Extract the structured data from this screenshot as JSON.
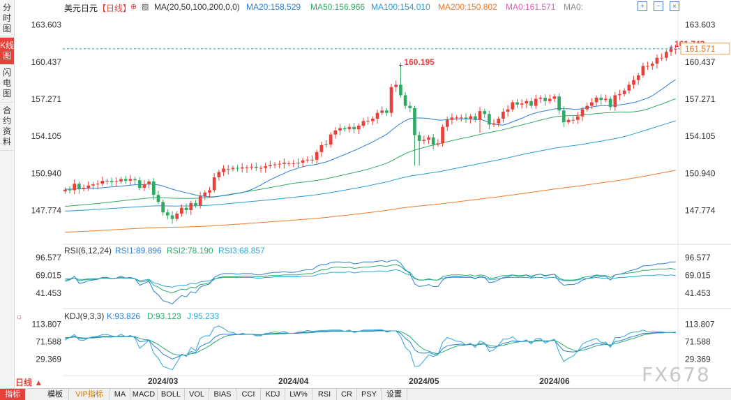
{
  "sidebar": {
    "tabs": [
      "分时图",
      "K线图",
      "闪电图",
      "合约资料"
    ],
    "active": 1
  },
  "header": {
    "symbol": "美元日元",
    "period_badge": "【日线】",
    "ma_label": "MA(20,50,100,200,0,0)",
    "ma20": "MA20:158.529",
    "ma50": "MA50:156.966",
    "ma100": "MA100:154.010",
    "ma200": "MA200:150.802",
    "ma0a": "MA0:161.571",
    "ma0b": "MA0:"
  },
  "rsi_header": {
    "label": "RSI(6,12,24)",
    "rsi1": "RSI1:89.896",
    "rsi2": "RSI2:78.190",
    "rsi3": "RSI3:68.857"
  },
  "kdj_header": {
    "label": "KDJ(9,3,3)",
    "k": "K:93.826",
    "d": "D:93.123",
    "j": "J:95.233"
  },
  "bottom": {
    "period": "日线 ▲",
    "tabs": [
      "指标",
      "模板",
      "VIP指标",
      "MA",
      "MACD",
      "BOLL",
      "VOL",
      "BIAS",
      "CCI",
      "KDJ",
      "LW%",
      "RSI",
      "CR",
      "PSY",
      "设置"
    ]
  },
  "watermark": "FX678",
  "colors": {
    "up": "#e8403a",
    "down": "#2eaa64",
    "ma20": "#2a7fd8",
    "ma50": "#2eaa64",
    "ma100": "#2a9ad8",
    "ma200": "#f07a28",
    "rsi1": "#2a7fd8",
    "rsi2": "#27ad6a",
    "rsi3": "#2aa8d8"
  },
  "chart_data": {
    "type": "candlestick",
    "title": "美元日元 日线",
    "y_ticks": [
      "163.603",
      "160.437",
      "157.271",
      "154.105",
      "150.940",
      "147.774"
    ],
    "y_tick_values": [
      163.603,
      160.437,
      157.271,
      154.105,
      150.94,
      147.774
    ],
    "ylim": [
      145.0,
      164.3
    ],
    "x_ticks": [
      "2024/03",
      "2024/04",
      "2024/05",
      "2024/06"
    ],
    "x_tick_index": [
      21,
      49,
      77,
      105
    ],
    "last_price": "161.571",
    "last_price_value": 161.571,
    "max_label": "161.742",
    "max_value": 161.742,
    "max_index": 130,
    "high_label": "160.195",
    "high_value": 160.195,
    "high_index": 72,
    "closes": [
      149.55,
      149.5,
      150.05,
      149.6,
      149.7,
      149.9,
      150.0,
      150.05,
      150.3,
      150.3,
      150.2,
      150.25,
      150.45,
      150.3,
      150.45,
      150.35,
      149.7,
      150.0,
      150.25,
      149.1,
      148.5,
      147.6,
      147.35,
      147.05,
      147.5,
      148.0,
      147.8,
      148.4,
      148.2,
      149.0,
      149.3,
      149.5,
      150.6,
      151.05,
      151.35,
      151.3,
      151.4,
      151.35,
      151.45,
      151.45,
      151.5,
      151.4,
      151.4,
      151.55,
      151.65,
      151.7,
      151.75,
      151.85,
      151.8,
      151.8,
      151.85,
      152.05,
      152.1,
      152.1,
      152.75,
      153.35,
      153.4,
      154.25,
      154.6,
      154.8,
      154.7,
      154.9,
      154.7,
      155.0,
      155.4,
      155.4,
      155.6,
      156.1,
      156.3,
      156.1,
      158.3,
      158.5,
      157.6,
      156.7,
      156.5,
      154.2,
      153.7,
      153.8,
      154.0,
      153.4,
      153.5,
      154.9,
      155.5,
      155.7,
      155.7,
      155.7,
      155.6,
      155.8,
      155.5,
      156.25,
      156.0,
      155.1,
      155.2,
      155.6,
      156.2,
      156.4,
      157.0,
      156.8,
      156.9,
      157.1,
      156.7,
      157.3,
      157.4,
      157.1,
      157.3,
      157.5,
      156.3,
      155.3,
      155.5,
      155.5,
      155.8,
      156.4,
      156.7,
      157.0,
      157.4,
      157.2,
      157.3,
      156.6,
      157.6,
      157.7,
      158.0,
      158.5,
      158.9,
      159.3,
      160.1,
      160.1,
      160.3,
      160.8,
      160.8,
      161.3,
      161.6,
      161.57
    ],
    "rsi_ticks": [
      "96.577",
      "69.015",
      "41.453"
    ],
    "rsi_tick_values": [
      96.577,
      69.015,
      41.453
    ],
    "rsi1": [
      60,
      62,
      68,
      57,
      58,
      61,
      62,
      63,
      66,
      66,
      64,
      65,
      68,
      65,
      66,
      64,
      54,
      57,
      60,
      45,
      39,
      30,
      28,
      25,
      32,
      38,
      36,
      44,
      42,
      51,
      54,
      56,
      66,
      70,
      72,
      72,
      72,
      71,
      72,
      72,
      72,
      70,
      70,
      72,
      73,
      74,
      74,
      75,
      74,
      74,
      75,
      77,
      78,
      78,
      83,
      86,
      86,
      89,
      90,
      90,
      89,
      90,
      87,
      88,
      90,
      90,
      90,
      91,
      92,
      90,
      92,
      93,
      88,
      78,
      72,
      56,
      52,
      53,
      55,
      52,
      52,
      62,
      66,
      67,
      67,
      67,
      66,
      67,
      64,
      68,
      66,
      58,
      59,
      62,
      66,
      67,
      70,
      68,
      68,
      70,
      66,
      70,
      71,
      68,
      70,
      71,
      60,
      54,
      55,
      55,
      57,
      62,
      64,
      66,
      69,
      67,
      68,
      62,
      70,
      71,
      73,
      76,
      78,
      80,
      84,
      84,
      85,
      87,
      87,
      88,
      90,
      89.9
    ],
    "rsi2": [
      62,
      63,
      65,
      61,
      62,
      63,
      63,
      64,
      65,
      65,
      64,
      65,
      66,
      65,
      65,
      64,
      59,
      60,
      62,
      54,
      51,
      46,
      44,
      42,
      45,
      48,
      47,
      51,
      50,
      55,
      56,
      58,
      63,
      66,
      67,
      67,
      67,
      67,
      68,
      68,
      68,
      67,
      67,
      68,
      69,
      69,
      69,
      70,
      70,
      70,
      70,
      71,
      72,
      72,
      75,
      78,
      78,
      81,
      82,
      82,
      81,
      82,
      80,
      81,
      82,
      82,
      83,
      84,
      84,
      83,
      85,
      86,
      83,
      77,
      74,
      65,
      62,
      62,
      64,
      62,
      62,
      67,
      69,
      70,
      70,
      70,
      69,
      70,
      68,
      70,
      69,
      65,
      65,
      67,
      69,
      69,
      70,
      69,
      69,
      70,
      68,
      70,
      71,
      69,
      70,
      71,
      65,
      62,
      62,
      62,
      63,
      66,
      67,
      68,
      70,
      69,
      69,
      66,
      70,
      71,
      72,
      73,
      74,
      75,
      77,
      77,
      78,
      79,
      79,
      79,
      80,
      78.19
    ],
    "rsi3": [
      64,
      64,
      65,
      63,
      63,
      64,
      64,
      64,
      65,
      65,
      64,
      65,
      65,
      65,
      65,
      64,
      61,
      62,
      63,
      58,
      56,
      53,
      52,
      51,
      53,
      54,
      54,
      57,
      56,
      59,
      60,
      61,
      64,
      65,
      66,
      66,
      66,
      66,
      66,
      66,
      66,
      65,
      65,
      66,
      66,
      67,
      67,
      67,
      67,
      67,
      67,
      68,
      68,
      68,
      70,
      72,
      72,
      74,
      74,
      74,
      74,
      75,
      73,
      74,
      75,
      75,
      75,
      76,
      76,
      75,
      77,
      78,
      76,
      72,
      70,
      64,
      62,
      62,
      63,
      62,
      62,
      65,
      66,
      66,
      66,
      66,
      66,
      66,
      65,
      66,
      66,
      63,
      63,
      64,
      65,
      66,
      66,
      66,
      66,
      66,
      65,
      66,
      66,
      65,
      66,
      66,
      63,
      61,
      61,
      61,
      62,
      64,
      64,
      65,
      66,
      65,
      65,
      63,
      65,
      66,
      66,
      67,
      67,
      68,
      69,
      69,
      69,
      70,
      70,
      69,
      70,
      68.857
    ],
    "kdj_ticks": [
      "113.807",
      "71.588",
      "29.369"
    ],
    "kdj_tick_values": [
      113.807,
      71.588,
      29.369
    ],
    "kdj_k": [
      80,
      82,
      85,
      80,
      79,
      81,
      82,
      83,
      85,
      85,
      84,
      84,
      86,
      84,
      85,
      83,
      72,
      73,
      76,
      62,
      54,
      42,
      36,
      30,
      34,
      40,
      38,
      48,
      46,
      60,
      66,
      70,
      82,
      88,
      90,
      90,
      90,
      89,
      90,
      90,
      90,
      88,
      88,
      90,
      91,
      92,
      92,
      93,
      92,
      92,
      93,
      94,
      95,
      95,
      96,
      97,
      97,
      98,
      98,
      98,
      97,
      98,
      96,
      97,
      98,
      98,
      98,
      99,
      99,
      97,
      98,
      98,
      92,
      80,
      72,
      52,
      45,
      44,
      46,
      42,
      42,
      55,
      62,
      64,
      65,
      66,
      64,
      66,
      62,
      68,
      67,
      58,
      58,
      62,
      68,
      70,
      74,
      72,
      72,
      74,
      70,
      75,
      76,
      72,
      74,
      76,
      62,
      50,
      48,
      47,
      49,
      56,
      60,
      64,
      68,
      66,
      67,
      62,
      72,
      74,
      77,
      82,
      85,
      88,
      92,
      92,
      93,
      94,
      94,
      94,
      94,
      93.826
    ],
    "kdj_d": [
      82,
      82,
      83,
      82,
      81,
      81,
      81,
      82,
      83,
      83,
      83,
      84,
      84,
      84,
      84,
      84,
      80,
      77,
      76,
      71,
      65,
      57,
      50,
      43,
      40,
      39,
      39,
      43,
      44,
      50,
      56,
      62,
      70,
      77,
      83,
      87,
      88,
      89,
      89,
      90,
      90,
      89,
      89,
      89,
      90,
      90,
      91,
      91,
      92,
      92,
      92,
      93,
      93,
      94,
      95,
      96,
      96,
      97,
      97,
      97,
      97,
      97,
      97,
      97,
      97,
      97,
      97,
      98,
      98,
      98,
      98,
      98,
      96,
      91,
      84,
      72,
      61,
      53,
      49,
      45,
      43,
      47,
      52,
      57,
      61,
      63,
      64,
      65,
      64,
      65,
      66,
      63,
      61,
      61,
      63,
      66,
      69,
      71,
      72,
      73,
      72,
      73,
      74,
      74,
      74,
      75,
      70,
      63,
      56,
      52,
      49,
      51,
      54,
      58,
      62,
      64,
      65,
      64,
      67,
      70,
      73,
      77,
      80,
      84,
      88,
      90,
      92,
      93,
      93,
      94,
      94,
      93.123
    ],
    "kdj_j": [
      76,
      82,
      89,
      76,
      75,
      81,
      84,
      85,
      89,
      89,
      86,
      84,
      90,
      84,
      87,
      81,
      56,
      65,
      76,
      44,
      32,
      12,
      8,
      4,
      22,
      42,
      36,
      58,
      50,
      80,
      86,
      86,
      106,
      110,
      104,
      96,
      94,
      89,
      92,
      90,
      90,
      86,
      86,
      92,
      93,
      96,
      94,
      97,
      92,
      92,
      95,
      96,
      99,
      97,
      98,
      99,
      99,
      100,
      100,
      100,
      97,
      100,
      94,
      97,
      100,
      100,
      100,
      101,
      101,
      95,
      98,
      98,
      84,
      58,
      48,
      12,
      13,
      26,
      40,
      36,
      40,
      71,
      82,
      78,
      73,
      72,
      64,
      68,
      58,
      74,
      69,
      48,
      52,
      64,
      78,
      78,
      84,
      74,
      72,
      76,
      66,
      79,
      80,
      68,
      74,
      78,
      46,
      24,
      32,
      37,
      49,
      66,
      72,
      76,
      80,
      70,
      71,
      58,
      82,
      82,
      85,
      92,
      95,
      96,
      100,
      96,
      95,
      96,
      96,
      94,
      94,
      95.233
    ]
  }
}
